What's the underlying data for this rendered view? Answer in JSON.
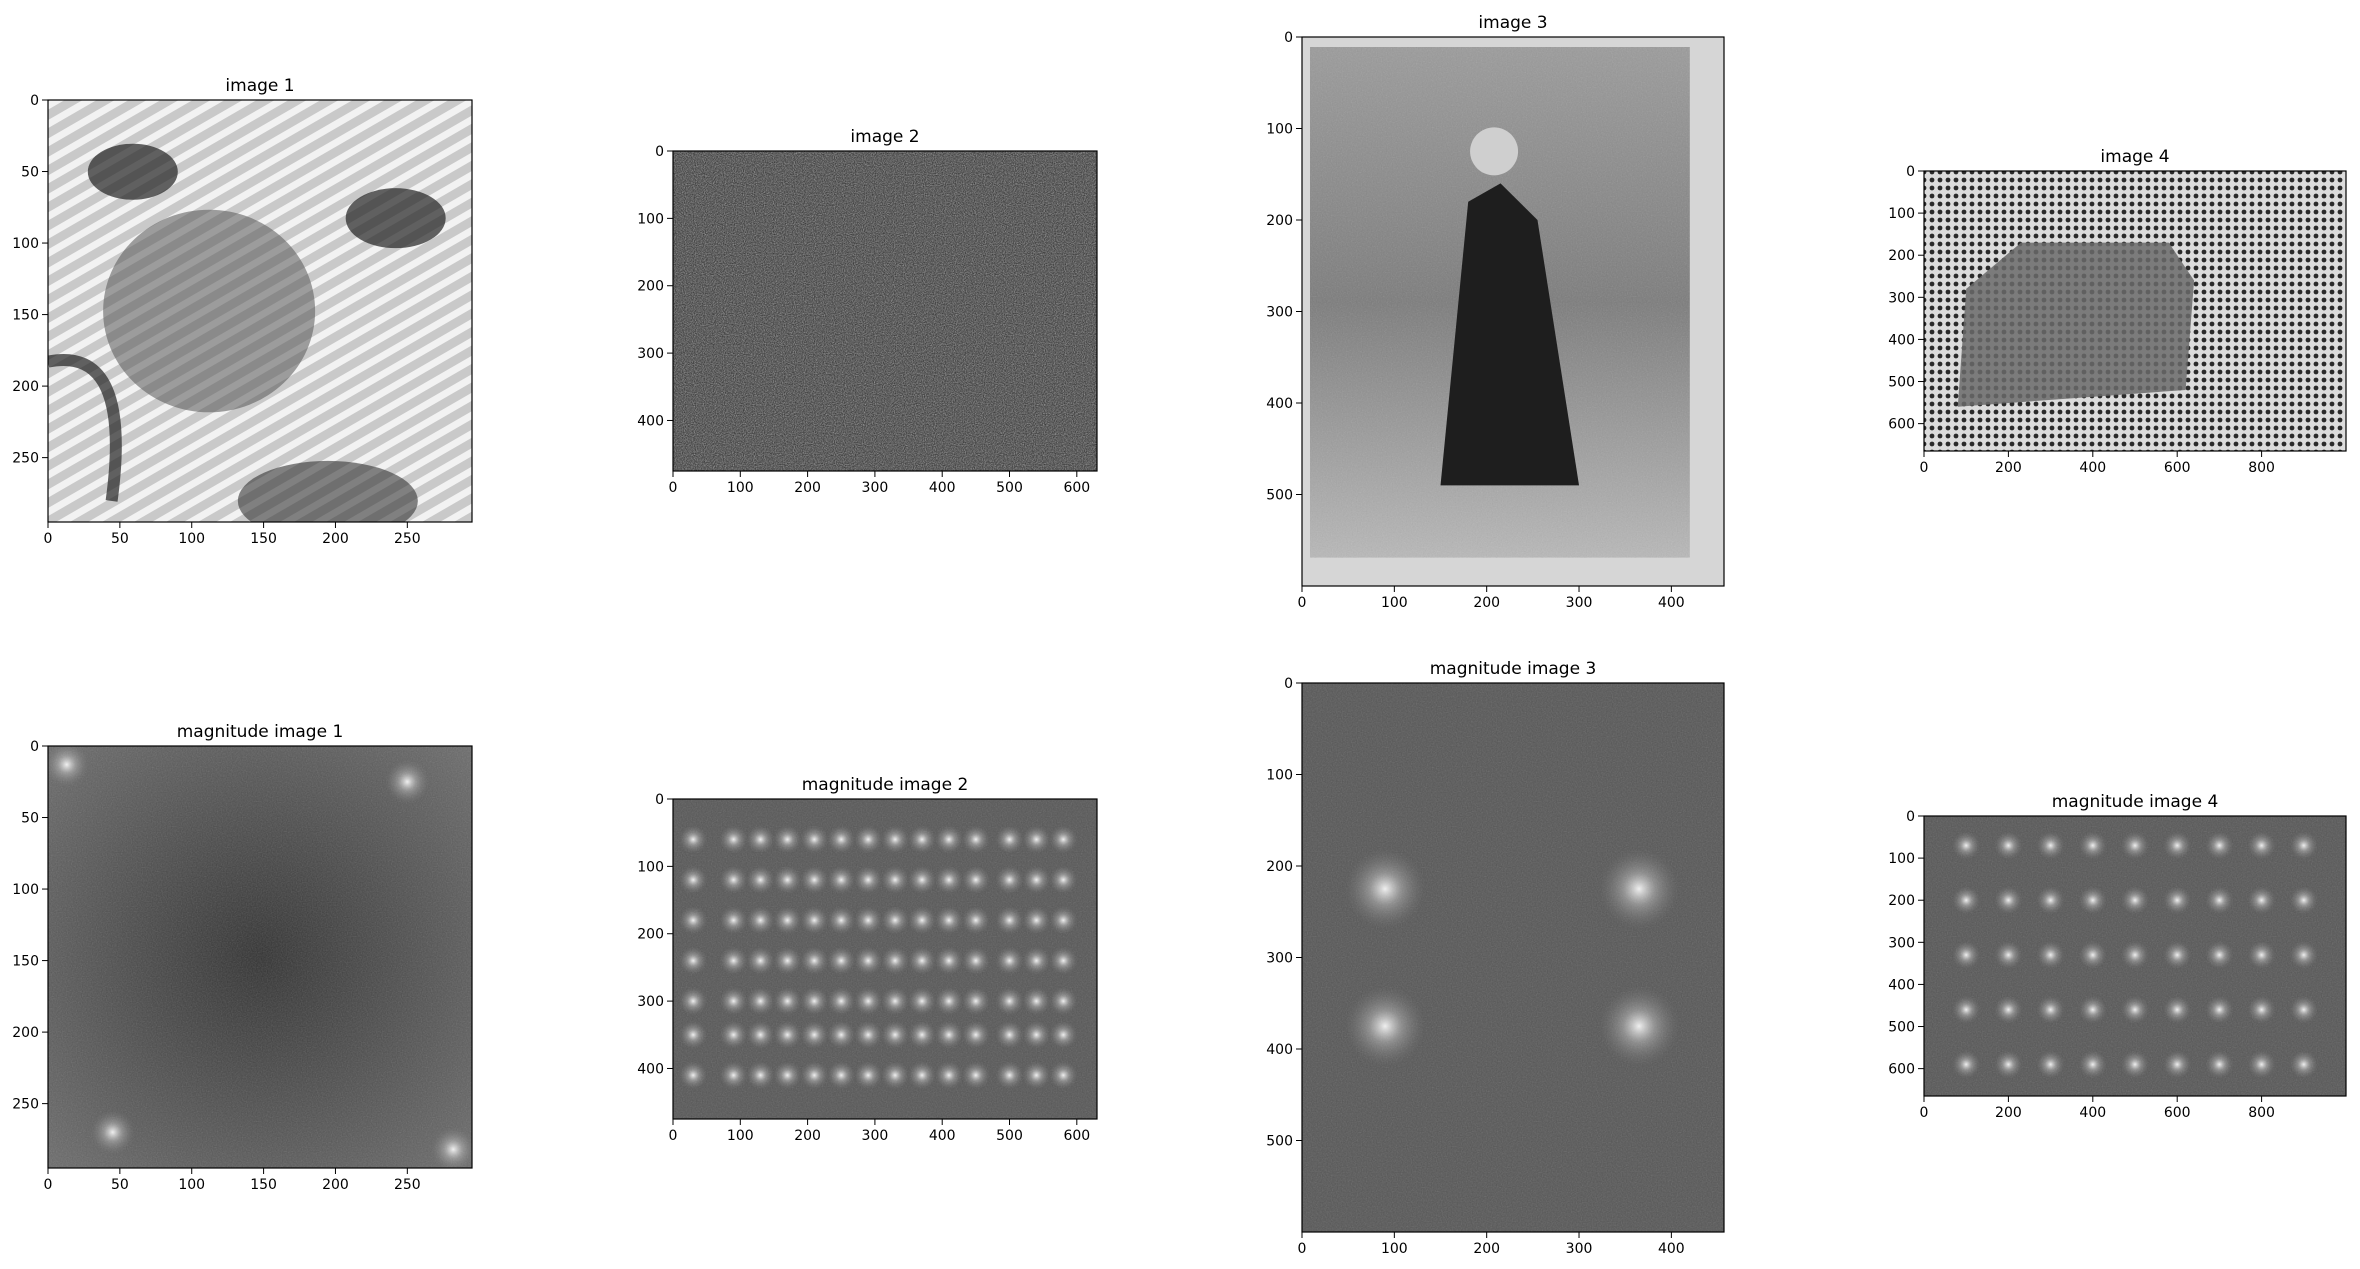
{
  "chart_data": [
    {
      "type": "heatmap",
      "title": "image 1",
      "content": "grayscale photograph with diagonal stripe pattern",
      "xlim": [
        0,
        295
      ],
      "ylim": [
        295,
        0
      ],
      "xticks": [
        0,
        50,
        100,
        150,
        200,
        250
      ],
      "yticks": [
        0,
        50,
        100,
        150,
        200,
        250
      ]
    },
    {
      "type": "heatmap",
      "title": "image 2",
      "content": "grayscale high-frequency noise texture",
      "xlim": [
        0,
        630
      ],
      "ylim": [
        475,
        0
      ],
      "xticks": [
        0,
        100,
        200,
        300,
        400,
        500,
        600
      ],
      "yticks": [
        0,
        100,
        200,
        300,
        400
      ]
    },
    {
      "type": "heatmap",
      "title": "image 3",
      "content": "old grayscale photograph of a standing person",
      "xlim": [
        0,
        457
      ],
      "ylim": [
        600,
        0
      ],
      "xticks": [
        0,
        100,
        200,
        300,
        400
      ],
      "yticks": [
        0,
        100,
        200,
        300,
        400,
        500
      ]
    },
    {
      "type": "heatmap",
      "title": "image 4",
      "content": "halftone grayscale photograph of a car on a road",
      "xlim": [
        0,
        1000
      ],
      "ylim": [
        665,
        0
      ],
      "xticks": [
        0,
        200,
        400,
        600,
        800
      ],
      "yticks": [
        0,
        100,
        200,
        300,
        400,
        500,
        600
      ]
    },
    {
      "type": "heatmap",
      "title": "magnitude image 1",
      "content": "FFT magnitude spectrum, bright corners",
      "xlim": [
        0,
        295
      ],
      "ylim": [
        295,
        0
      ],
      "xticks": [
        0,
        50,
        100,
        150,
        200,
        250
      ],
      "yticks": [
        0,
        50,
        100,
        150,
        200,
        250
      ],
      "peaks": [
        [
          13,
          13
        ],
        [
          250,
          25
        ],
        [
          45,
          270
        ],
        [
          282,
          282
        ]
      ]
    },
    {
      "type": "heatmap",
      "title": "magnitude image 2",
      "content": "FFT magnitude spectrum, regular grid of peaks",
      "xlim": [
        0,
        630
      ],
      "ylim": [
        475,
        0
      ],
      "xticks": [
        0,
        100,
        200,
        300,
        400,
        500,
        600
      ],
      "yticks": [
        0,
        100,
        200,
        300,
        400
      ],
      "peak_grid_x": [
        30,
        90,
        130,
        170,
        210,
        250,
        290,
        330,
        370,
        410,
        450,
        500,
        540,
        580
      ],
      "peak_grid_y": [
        60,
        120,
        180,
        240,
        300,
        350,
        410
      ]
    },
    {
      "type": "heatmap",
      "title": "magnitude image 3",
      "content": "FFT magnitude spectrum, four symmetric peaks",
      "xlim": [
        0,
        457
      ],
      "ylim": [
        600,
        0
      ],
      "xticks": [
        0,
        100,
        200,
        300,
        400
      ],
      "yticks": [
        0,
        100,
        200,
        300,
        400,
        500
      ],
      "peaks": [
        [
          90,
          225
        ],
        [
          365,
          225
        ],
        [
          90,
          375
        ],
        [
          365,
          375
        ]
      ]
    },
    {
      "type": "heatmap",
      "title": "magnitude image 4",
      "content": "FFT magnitude spectrum, lattice of peaks",
      "xlim": [
        0,
        1000
      ],
      "ylim": [
        665,
        0
      ],
      "xticks": [
        0,
        200,
        400,
        600,
        800
      ],
      "yticks": [
        0,
        100,
        200,
        300,
        400,
        500,
        600
      ],
      "peak_grid_x": [
        100,
        200,
        300,
        400,
        500,
        600,
        700,
        800,
        900
      ],
      "peak_grid_y": [
        70,
        200,
        330,
        460,
        590
      ]
    }
  ]
}
